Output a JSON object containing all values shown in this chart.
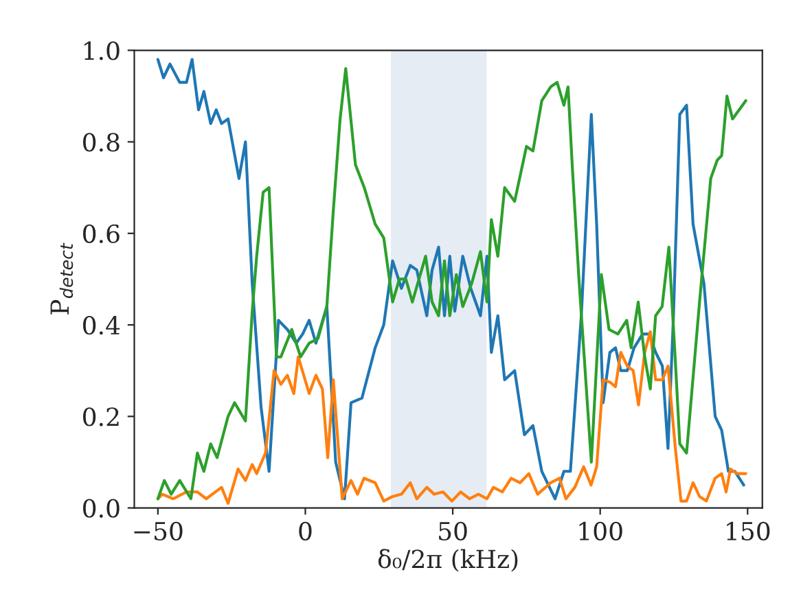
{
  "chart_data": {
    "type": "line",
    "xlabel": "δ₀/2π (kHz)",
    "ylabel": "P$_{detect}$",
    "xlim": [
      -58,
      155
    ],
    "ylim": [
      0.0,
      1.0
    ],
    "xticks": [
      {
        "value": -50,
        "label": "−50"
      },
      0,
      50,
      100,
      150
    ],
    "yticks": [
      {
        "value": 0.0,
        "label": "0.0"
      },
      {
        "value": 0.2,
        "label": "0.2"
      },
      {
        "value": 0.4,
        "label": "0.4"
      },
      {
        "value": 0.6,
        "label": "0.6"
      },
      {
        "value": 0.8,
        "label": "0.8"
      },
      {
        "value": 1.0,
        "label": "1.0"
      }
    ],
    "grid": false,
    "marker": "none",
    "line_style": "solid",
    "bands": [
      {
        "axis": "x",
        "from": 29,
        "to": 61.5,
        "color": "#e5ecf4"
      }
    ],
    "series": [
      {
        "color": "#1f77b4",
        "x": [
          -50,
          -48.1,
          -45.9,
          -42.6,
          -40.3,
          -38.4,
          -36.2,
          -34.4,
          -32.1,
          -30.2,
          -28.4,
          -26.2,
          -22.5,
          -20.3,
          -18,
          -15,
          -12.3,
          -9.1,
          -6.1,
          -3.1,
          -0.9,
          1.3,
          3.6,
          7.3,
          10.3,
          13.3,
          15.5,
          19.2,
          23.7,
          26.6,
          29.6,
          32.6,
          35.6,
          37.8,
          41.2,
          43,
          45.2,
          47.2,
          49,
          50.7,
          53.4,
          56.1,
          59.4,
          61.6,
          63.1,
          65.3,
          67.6,
          71,
          74.3,
          77.2,
          80.2,
          84.7,
          87.7,
          89.9,
          93.6,
          97,
          98.8,
          101,
          103.3,
          105.2,
          107,
          109.2,
          111.5,
          114.4,
          116.6,
          118.8,
          121.1,
          123,
          124.8,
          127,
          129.3,
          131.5,
          135.2,
          139,
          141.2,
          143.5,
          145.7,
          148.7
        ],
        "values": [
          0.98,
          0.94,
          0.97,
          0.93,
          0.93,
          0.98,
          0.87,
          0.91,
          0.84,
          0.87,
          0.84,
          0.85,
          0.72,
          0.8,
          0.49,
          0.22,
          0.08,
          0.41,
          0.39,
          0.36,
          0.38,
          0.41,
          0.36,
          0.44,
          0.1,
          0.02,
          0.23,
          0.24,
          0.35,
          0.4,
          0.54,
          0.48,
          0.53,
          0.52,
          0.42,
          0.52,
          0.57,
          0.42,
          0.55,
          0.43,
          0.55,
          0.48,
          0.42,
          0.55,
          0.34,
          0.42,
          0.28,
          0.3,
          0.16,
          0.18,
          0.08,
          0.02,
          0.08,
          0.08,
          0.42,
          0.86,
          0.62,
          0.23,
          0.34,
          0.35,
          0.3,
          0.3,
          0.35,
          0.38,
          0.38,
          0.34,
          0.31,
          0.13,
          0.41,
          0.86,
          0.88,
          0.62,
          0.49,
          0.2,
          0.17,
          0.08,
          0.08,
          0.05
        ]
      },
      {
        "color": "#ff7f0e",
        "x": [
          -50,
          -48.5,
          -44.8,
          -40.3,
          -36.6,
          -33.6,
          -28.4,
          -26.2,
          -22.8,
          -20.3,
          -18,
          -16.5,
          -13.5,
          -10.6,
          -8.3,
          -6.1,
          -3.9,
          -2.4,
          1.3,
          3.6,
          5.8,
          7.6,
          9.5,
          12.5,
          15.5,
          17.7,
          19.9,
          23.7,
          26.6,
          29.6,
          32.6,
          35.6,
          37.8,
          41.2,
          43.7,
          46.7,
          49.7,
          52.7,
          55.7,
          58.7,
          61.6,
          63.8,
          66.8,
          69.8,
          72.8,
          75.8,
          78.8,
          83.2,
          86.2,
          88.4,
          91.4,
          94.4,
          96.9,
          98.8,
          101,
          103.3,
          105.2,
          107,
          109.2,
          111.2,
          113,
          115.1,
          117,
          118.8,
          121.1,
          123,
          125.5,
          127.4,
          129.3,
          131.5,
          133.7,
          136,
          139,
          141.2,
          142.7,
          144.2,
          146.4,
          149.4
        ],
        "values": [
          0.02,
          0.03,
          0.02,
          0.035,
          0.035,
          0.02,
          0.045,
          0.01,
          0.085,
          0.06,
          0.095,
          0.075,
          0.12,
          0.3,
          0.27,
          0.29,
          0.25,
          0.33,
          0.25,
          0.29,
          0.26,
          0.11,
          0.28,
          0.02,
          0.06,
          0.03,
          0.065,
          0.055,
          0.015,
          0.025,
          0.03,
          0.055,
          0.02,
          0.045,
          0.03,
          0.035,
          0.015,
          0.035,
          0.02,
          0.03,
          0.02,
          0.045,
          0.035,
          0.065,
          0.055,
          0.075,
          0.03,
          0.055,
          0.065,
          0.02,
          0.045,
          0.09,
          0.05,
          0.09,
          0.28,
          0.275,
          0.265,
          0.34,
          0.31,
          0.3,
          0.225,
          0.34,
          0.385,
          0.28,
          0.28,
          0.31,
          0.13,
          0.015,
          0.015,
          0.055,
          0.025,
          0.015,
          0.065,
          0.075,
          0.035,
          0.085,
          0.075,
          0.075
        ]
      },
      {
        "color": "#2ca02c",
        "x": [
          -50,
          -47.8,
          -45.5,
          -42.6,
          -38.8,
          -36.6,
          -34.4,
          -32.1,
          -29.9,
          -26.2,
          -24,
          -20.3,
          -18,
          -16.5,
          -14.3,
          -12.3,
          -9.8,
          -8.3,
          -4.6,
          -1.6,
          1.3,
          4.3,
          7.3,
          9.5,
          11.8,
          13.7,
          17,
          20,
          23.7,
          26.6,
          29.6,
          31.9,
          34.1,
          36.3,
          40.8,
          43,
          45.2,
          47.2,
          49,
          51.2,
          53.4,
          56.4,
          59.4,
          61.6,
          63.1,
          65.3,
          67.6,
          71,
          75,
          77.2,
          80.2,
          83.2,
          85.4,
          87.7,
          89.1,
          90.6,
          92.8,
          97,
          100.4,
          103,
          106,
          109,
          110.5,
          112.9,
          115.1,
          117,
          118.8,
          121,
          123.3,
          125.5,
          127,
          129.3,
          133.7,
          137.5,
          139.7,
          141.2,
          143,
          144.9,
          149.4
        ],
        "values": [
          0.02,
          0.06,
          0.03,
          0.06,
          0.02,
          0.12,
          0.08,
          0.14,
          0.11,
          0.2,
          0.23,
          0.19,
          0.43,
          0.55,
          0.69,
          0.7,
          0.33,
          0.33,
          0.39,
          0.33,
          0.36,
          0.37,
          0.44,
          0.65,
          0.85,
          0.96,
          0.75,
          0.7,
          0.62,
          0.59,
          0.45,
          0.5,
          0.5,
          0.45,
          0.55,
          0.45,
          0.42,
          0.54,
          0.42,
          0.51,
          0.44,
          0.49,
          0.56,
          0.45,
          0.63,
          0.55,
          0.7,
          0.67,
          0.79,
          0.78,
          0.89,
          0.92,
          0.93,
          0.88,
          0.92,
          0.74,
          0.5,
          0.1,
          0.51,
          0.39,
          0.38,
          0.41,
          0.35,
          0.45,
          0.33,
          0.26,
          0.42,
          0.44,
          0.57,
          0.32,
          0.14,
          0.12,
          0.45,
          0.72,
          0.76,
          0.77,
          0.9,
          0.85,
          0.89
        ]
      }
    ]
  }
}
